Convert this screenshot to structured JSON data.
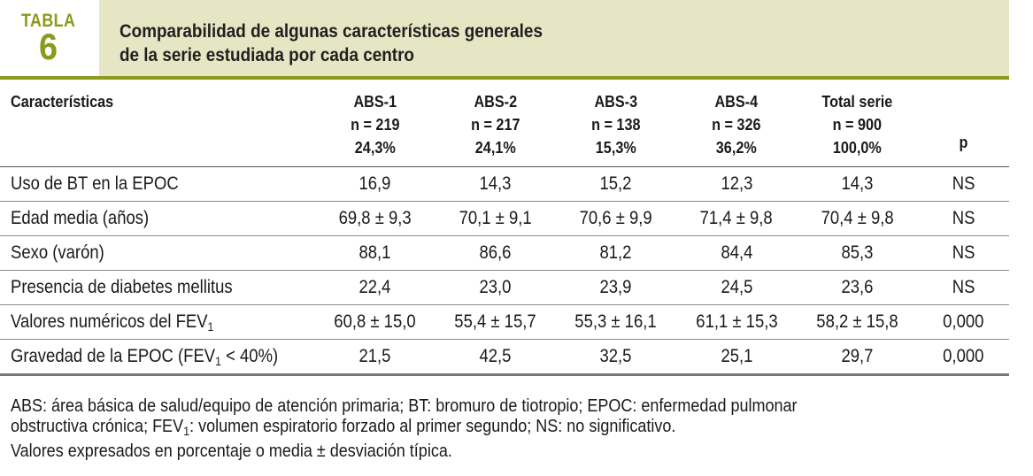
{
  "header": {
    "tag_word": "TABLA",
    "tag_number": "6",
    "title_line1": "Comparabilidad de algunas características generales",
    "title_line2": "de la serie estudiada por cada centro"
  },
  "table": {
    "columns": [
      {
        "name": "Características",
        "n": "",
        "pct": ""
      },
      {
        "name": "ABS-1",
        "n": "n = 219",
        "pct": "24,3%"
      },
      {
        "name": "ABS-2",
        "n": "n = 217",
        "pct": "24,1%"
      },
      {
        "name": "ABS-3",
        "n": "n = 138",
        "pct": "15,3%"
      },
      {
        "name": "ABS-4",
        "n": "n = 326",
        "pct": "36,2%"
      },
      {
        "name": "Total serie",
        "n": "n = 900",
        "pct": "100,0%"
      },
      {
        "name": "p",
        "n": "",
        "pct": ""
      }
    ],
    "rows": [
      {
        "label": "Uso de BT en la EPOC",
        "label_sub": "",
        "label_tail": "",
        "values": [
          "16,9",
          "14,3",
          "15,2",
          "12,3",
          "14,3",
          "NS"
        ]
      },
      {
        "label": "Edad media (años)",
        "label_sub": "",
        "label_tail": "",
        "values": [
          "69,8 ± 9,3",
          "70,1 ± 9,1",
          "70,6 ± 9,9",
          "71,4 ± 9,8",
          "70,4 ± 9,8",
          "NS"
        ]
      },
      {
        "label": "Sexo (varón)",
        "label_sub": "",
        "label_tail": "",
        "values": [
          "88,1",
          "86,6",
          "81,2",
          "84,4",
          "85,3",
          "NS"
        ]
      },
      {
        "label": "Presencia de diabetes mellitus",
        "label_sub": "",
        "label_tail": "",
        "values": [
          "22,4",
          "23,0",
          "23,9",
          "24,5",
          "23,6",
          "NS"
        ]
      },
      {
        "label": "Valores numéricos del FEV",
        "label_sub": "1",
        "label_tail": "",
        "values": [
          "60,8 ± 15,0",
          "55,4 ± 15,7",
          "55,3 ± 16,1",
          "61,1 ± 15,3",
          "58,2 ± 15,8",
          "0,000"
        ]
      },
      {
        "label": "Gravedad de la EPOC (FEV",
        "label_sub": "1",
        "label_tail": " < 40%)",
        "values": [
          "21,5",
          "42,5",
          "32,5",
          "25,1",
          "29,7",
          "0,000"
        ]
      }
    ]
  },
  "footnote": {
    "line1": "ABS: área básica de salud/equipo de atención primaria; BT: bromuro de tiotropio; EPOC: enfermedad pulmonar",
    "line2_a": "obstructiva crónica; FEV",
    "line2_sub": "1",
    "line2_b": ": volumen espiratorio forzado al primer segundo; NS: no significativo.",
    "line3": "Valores expresados en porcentaje o media ± desviación típica."
  },
  "colors": {
    "accent": "#8b9a1b",
    "title_bg": "#e6e6c4"
  }
}
